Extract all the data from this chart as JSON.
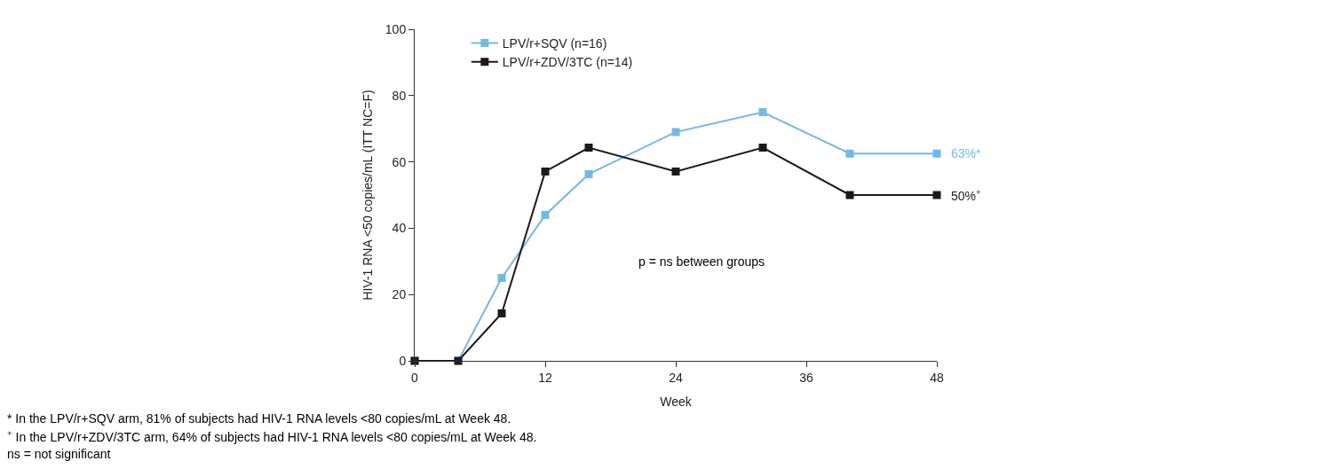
{
  "chart_data": {
    "type": "line",
    "xlabel": "Week",
    "ylabel": "HIV-1 RNA <50 copies/mL (ITT NC=F)",
    "x": [
      0,
      4,
      8,
      12,
      16,
      24,
      32,
      40,
      48
    ],
    "series": [
      {
        "name": "LPV/r+SQV (n=16)",
        "color": "#74b9e4",
        "values": [
          0,
          0,
          25,
          44,
          56.3,
          69,
          75,
          62.5,
          62.5
        ]
      },
      {
        "name": "LPV/r+ZDV/3TC (n=14)",
        "color": "#1a1a1a",
        "values": [
          0,
          0,
          14.3,
          57.1,
          64.3,
          57.1,
          64.3,
          50,
          50
        ]
      }
    ],
    "xlim": [
      0,
      48
    ],
    "xticks": [
      0,
      12,
      24,
      36,
      48
    ],
    "ylim": [
      0,
      100
    ],
    "yticks": [
      0,
      20,
      40,
      60,
      80,
      100
    ],
    "marker": "square",
    "line_style": "solid",
    "legend": "top left",
    "annotations": [
      {
        "text": "63%*",
        "x": 48,
        "y": 62.5
      },
      {
        "text": "50%$^{+}$",
        "x": 48,
        "y": 50
      },
      "p = ns between groups",
      "* In the LPV/r+SQV arm, 81% of subjects had HIV-1 RNA levels <80 copies/mL at Week 48.",
      "$^{+}$ In the LPV/r+ZDV/3TC arm, 64% of subjects had HIV-1 RNA levels <80 copies/mL at Week 48.",
      "ns = not significant"
    ]
  }
}
